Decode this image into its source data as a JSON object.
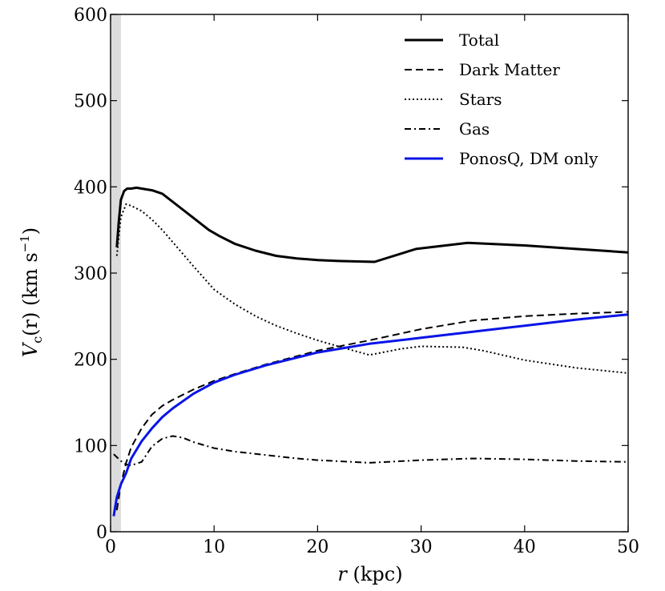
{
  "chart_data": {
    "type": "line",
    "title": "",
    "xlabel_italic": "r",
    "xlabel_unit": "(kpc)",
    "ylabel_var": "V",
    "ylabel_sub": "c",
    "ylabel_arg": "(r)",
    "ylabel_unit_pre": "(km s",
    "ylabel_unit_exp": "−1",
    "ylabel_unit_post": ")",
    "xlim": [
      0,
      50
    ],
    "ylim": [
      0,
      600
    ],
    "xticks": [
      0,
      10,
      20,
      30,
      40,
      50
    ],
    "yticks": [
      0,
      100,
      200,
      300,
      400,
      500,
      600
    ],
    "xtick_labels": [
      "0",
      "10",
      "20",
      "30",
      "40",
      "50"
    ],
    "ytick_labels": [
      "0",
      "100",
      "200",
      "300",
      "400",
      "500",
      "600"
    ],
    "shaded_region": {
      "x_from": 0,
      "x_to": 1,
      "color": "#dcdcdc"
    },
    "legend_position": "top-right",
    "series": [
      {
        "name": "Total",
        "color": "#000000",
        "style": "solid",
        "width": 3,
        "x": [
          0.6,
          0.8,
          1.0,
          1.3,
          1.6,
          2.0,
          2.5,
          3.0,
          4.0,
          5.0,
          6.5,
          8.0,
          9.5,
          10.5,
          12.0,
          14.0,
          16.0,
          18.0,
          20.0,
          22.0,
          25.5,
          29.5,
          34.5,
          40.0,
          45.0,
          50.0
        ],
        "y": [
          330,
          360,
          385,
          395,
          398,
          398,
          399,
          398,
          396,
          392,
          378,
          364,
          350,
          343,
          334,
          326,
          320,
          317,
          315,
          314,
          313,
          328,
          335,
          332,
          328,
          324
        ]
      },
      {
        "name": "Dark Matter",
        "color": "#000000",
        "style": "dashed",
        "width": 2,
        "x": [
          0.6,
          1.0,
          1.5,
          2.0,
          3.0,
          4.0,
          5.0,
          6.0,
          8.0,
          10.0,
          12.0,
          15.0,
          20.0,
          25.0,
          30.0,
          35.0,
          40.0,
          45.0,
          50.0
        ],
        "y": [
          25,
          55,
          80,
          98,
          120,
          136,
          146,
          153,
          165,
          175,
          183,
          194,
          210,
          222,
          235,
          245,
          250,
          253,
          255
        ]
      },
      {
        "name": "Stars",
        "color": "#000000",
        "style": "dotted",
        "width": 2,
        "x": [
          0.6,
          1.0,
          1.5,
          2.0,
          3.0,
          4.0,
          5.0,
          6.0,
          8.0,
          10.0,
          12.0,
          14.0,
          16.0,
          18.0,
          20.0,
          22.0,
          25.0,
          28.0,
          30.0,
          34.0,
          36.0,
          40.0,
          45.0,
          50.0
        ],
        "y": [
          320,
          365,
          380,
          378,
          372,
          362,
          350,
          336,
          308,
          281,
          264,
          250,
          239,
          230,
          222,
          215,
          205,
          212,
          215,
          214,
          210,
          199,
          190,
          184
        ]
      },
      {
        "name": "Gas",
        "color": "#000000",
        "style": "dashdot",
        "width": 2,
        "x": [
          0.3,
          1.0,
          1.5,
          2.0,
          3.0,
          4.0,
          5.0,
          6.0,
          7.0,
          8.0,
          10.0,
          12.0,
          15.0,
          18.0,
          20.0,
          25.0,
          30.0,
          35.0,
          40.0,
          45.0,
          50.0
        ],
        "y": [
          90,
          82,
          78,
          77,
          81,
          99,
          108,
          111,
          109,
          104,
          97,
          93,
          89,
          85,
          83,
          80,
          83,
          85,
          84,
          82,
          81
        ]
      },
      {
        "name": "PonosQ, DM only",
        "color": "#0a14e6",
        "style": "solid",
        "width": 3,
        "x": [
          0.3,
          0.6,
          1.0,
          1.5,
          2.0,
          3.0,
          4.0,
          5.0,
          6.0,
          8.0,
          10.0,
          12.0,
          15.0,
          20.0,
          25.0,
          30.0,
          35.0,
          40.0,
          45.0,
          50.0
        ],
        "y": [
          18,
          40,
          55,
          68,
          85,
          105,
          120,
          133,
          143,
          160,
          173,
          182,
          193,
          208,
          218,
          225,
          232,
          239,
          246,
          252
        ]
      }
    ]
  }
}
